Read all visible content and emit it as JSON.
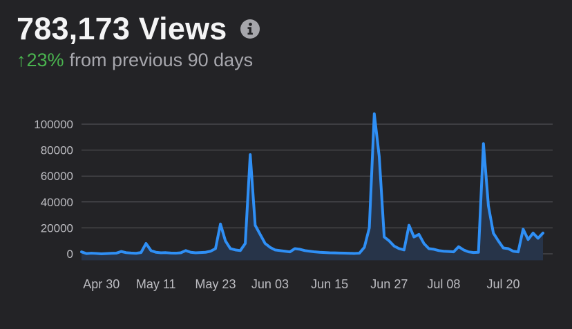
{
  "header": {
    "title": "783,173 Views",
    "change_arrow": "↑",
    "change_percent": "23%",
    "period_text": "from previous 90 days",
    "info_icon": "info-icon"
  },
  "colors": {
    "background": "#232326",
    "title": "#f4f4f5",
    "positive": "#4ab34f",
    "muted_text": "#a7a7ad",
    "line": "#2f8ff5",
    "area_fill": "#273449",
    "grid": "#5a5a5e",
    "axis_text": "#bdbdc2",
    "icon_bg": "#a6a6ab"
  },
  "chart_data": {
    "type": "area",
    "title": "",
    "xlabel": "",
    "ylabel": "",
    "ylim": [
      -5000,
      110000
    ],
    "grid": true,
    "y_ticks": [
      0,
      20000,
      40000,
      60000,
      80000,
      100000
    ],
    "y_tick_labels": [
      "0",
      "20000",
      "40000",
      "60000",
      "80000",
      "100000"
    ],
    "x_tick_labels": [
      {
        "label": "Apr 30",
        "index": 4
      },
      {
        "label": "May 11",
        "index": 15
      },
      {
        "label": "May 23",
        "index": 27
      },
      {
        "label": "Jun 03",
        "index": 38
      },
      {
        "label": "Jun 15",
        "index": 50
      },
      {
        "label": "Jun 27",
        "index": 62
      },
      {
        "label": "Jul 08",
        "index": 73
      },
      {
        "label": "Jul 20",
        "index": 85
      }
    ],
    "series": [
      {
        "values": [
          1500,
          200,
          500,
          300,
          0,
          200,
          400,
          500,
          1800,
          900,
          600,
          400,
          1000,
          8000,
          2500,
          1200,
          800,
          900,
          600,
          500,
          800,
          2500,
          1200,
          800,
          1000,
          1200,
          2000,
          4000,
          23000,
          10000,
          4000,
          3000,
          2500,
          8000,
          76500,
          22000,
          15000,
          8000,
          5000,
          3000,
          2500,
          2000,
          1500,
          4000,
          3500,
          2500,
          2000,
          1500,
          1200,
          1000,
          800,
          700,
          600,
          500,
          400,
          300,
          500,
          5000,
          20000,
          108000,
          75000,
          13000,
          10000,
          6000,
          4000,
          3000,
          22000,
          13000,
          15000,
          8000,
          4000,
          3500,
          2500,
          2000,
          1800,
          1500,
          5500,
          3000,
          1500,
          1000,
          1200,
          85000,
          37000,
          16000,
          10000,
          4500,
          4000,
          2000,
          1500,
          19000,
          11000,
          16000,
          12000,
          16000
        ]
      }
    ]
  }
}
